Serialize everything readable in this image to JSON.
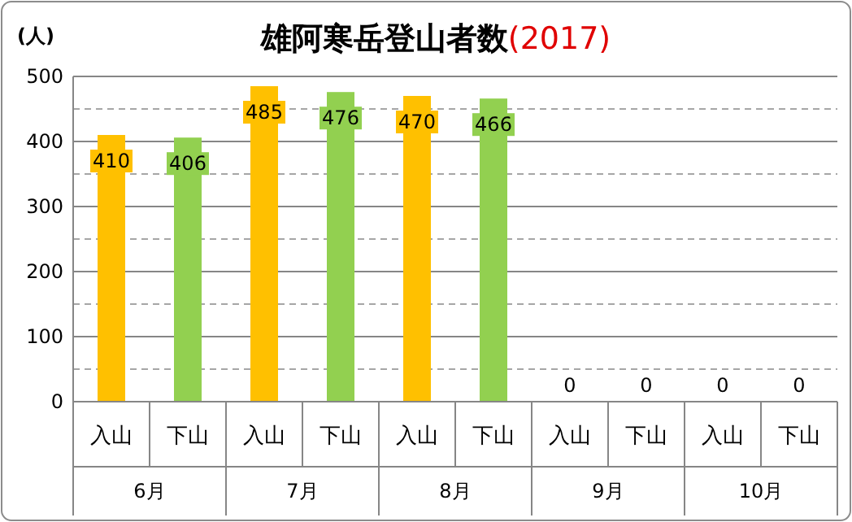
{
  "chart_data": {
    "type": "bar",
    "title": "雄阿寒岳登山者数(2017)",
    "ylabel": "(人)",
    "categories": [
      "入山",
      "下山",
      "入山",
      "下山",
      "入山",
      "下山",
      "入山",
      "下山",
      "入山",
      "下山"
    ],
    "values": [
      410,
      406,
      485,
      476,
      470,
      466,
      0,
      0,
      0,
      0
    ],
    "colors": [
      "#ffc000",
      "#92d050",
      "#ffc000",
      "#92d050",
      "#ffc000",
      "#92d050",
      "#ffc000",
      "#92d050",
      "#ffc000",
      "#92d050"
    ],
    "annotations": [
      "6月",
      "7月",
      "8月",
      "9月",
      "10月"
    ],
    "ylim": [
      0,
      500
    ],
    "yticks": [
      0,
      100,
      200,
      300,
      400,
      500
    ],
    "grid": "y",
    "data_labels": true
  }
}
